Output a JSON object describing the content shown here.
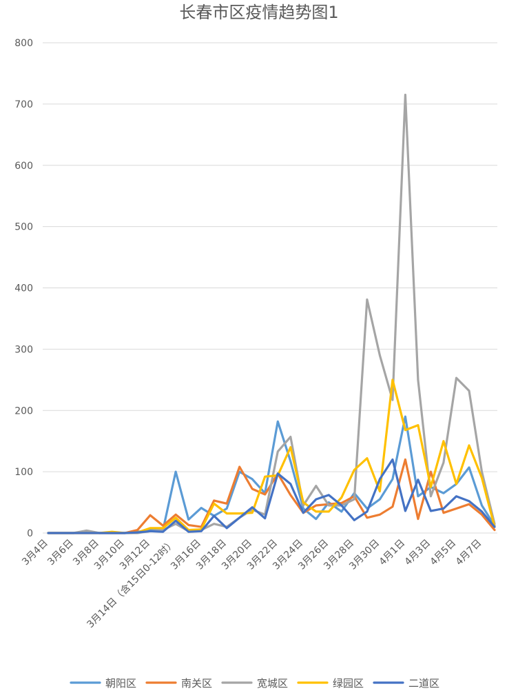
{
  "chart_data": {
    "type": "line",
    "title": "长春市区疫情趋势图1",
    "xlabel": "",
    "ylabel": "",
    "ylim": [
      0,
      800
    ],
    "yticks": [
      0,
      100,
      200,
      300,
      400,
      500,
      600,
      700,
      800
    ],
    "grid": "horizontal",
    "legend_position": "bottom",
    "x": [
      "3月4日",
      "3月5日",
      "3月6日",
      "3月7日",
      "3月8日",
      "3月9日",
      "3月10日",
      "3月11日",
      "3月12日",
      "3月13日",
      "3月14日（含15日0-12时）",
      "3月15日",
      "3月16日",
      "3月17日",
      "3月18日",
      "3月19日",
      "3月20日",
      "3月21日",
      "3月22日",
      "3月23日",
      "3月24日",
      "3月25日",
      "3月26日",
      "3月27日",
      "3月28日",
      "3月29日",
      "3月30日",
      "3月31日",
      "4月1日",
      "4月2日",
      "4月3日",
      "4月4日",
      "4月5日",
      "4月6日",
      "4月7日",
      "4月8日"
    ],
    "x_tick_labels": [
      "3月4日",
      "3月6日",
      "3月8日",
      "3月10日",
      "3月12日",
      "3月14日（含15日0-12时）",
      "3月16日",
      "3月18日",
      "3月20日",
      "3月22日",
      "3月24日",
      "3月26日",
      "3月28日",
      "3月30日",
      "4月1日",
      "4月3日",
      "4月5日",
      "4月7日"
    ],
    "series": [
      {
        "name": "朝阳区",
        "color": "#5b9bd5",
        "values": [
          0,
          0,
          0,
          3,
          0,
          0,
          0,
          2,
          5,
          5,
          100,
          22,
          41,
          28,
          40,
          100,
          88,
          65,
          182,
          117,
          40,
          23,
          50,
          35,
          65,
          40,
          55,
          88,
          190,
          60,
          75,
          65,
          80,
          107,
          45,
          12
        ]
      },
      {
        "name": "南关区",
        "color": "#ed7d31",
        "values": [
          0,
          0,
          0,
          0,
          0,
          0,
          0,
          5,
          29,
          12,
          30,
          13,
          10,
          53,
          48,
          108,
          72,
          63,
          97,
          62,
          33,
          45,
          47,
          49,
          60,
          25,
          30,
          43,
          120,
          23,
          100,
          33,
          40,
          47,
          30,
          5
        ]
      },
      {
        "name": "宽城区",
        "color": "#a5a5a5",
        "values": [
          0,
          0,
          0,
          4,
          0,
          0,
          0,
          0,
          3,
          5,
          15,
          3,
          5,
          15,
          10,
          25,
          38,
          30,
          133,
          157,
          45,
          77,
          45,
          45,
          55,
          381,
          290,
          217,
          715,
          250,
          60,
          115,
          253,
          232,
          100,
          15
        ]
      },
      {
        "name": "绿园区",
        "color": "#ffc000",
        "values": [
          0,
          0,
          0,
          0,
          0,
          2,
          0,
          1,
          8,
          8,
          25,
          5,
          6,
          48,
          32,
          32,
          33,
          92,
          94,
          140,
          50,
          35,
          35,
          58,
          103,
          122,
          68,
          250,
          168,
          176,
          75,
          150,
          80,
          143,
          90,
          10
        ]
      },
      {
        "name": "二道区",
        "color": "#4472c4",
        "values": [
          0,
          0,
          0,
          0,
          0,
          0,
          0,
          1,
          3,
          2,
          20,
          2,
          3,
          28,
          8,
          25,
          42,
          24,
          97,
          80,
          33,
          55,
          62,
          45,
          21,
          35,
          88,
          120,
          36,
          87,
          36,
          40,
          60,
          52,
          35,
          10
        ]
      }
    ]
  }
}
